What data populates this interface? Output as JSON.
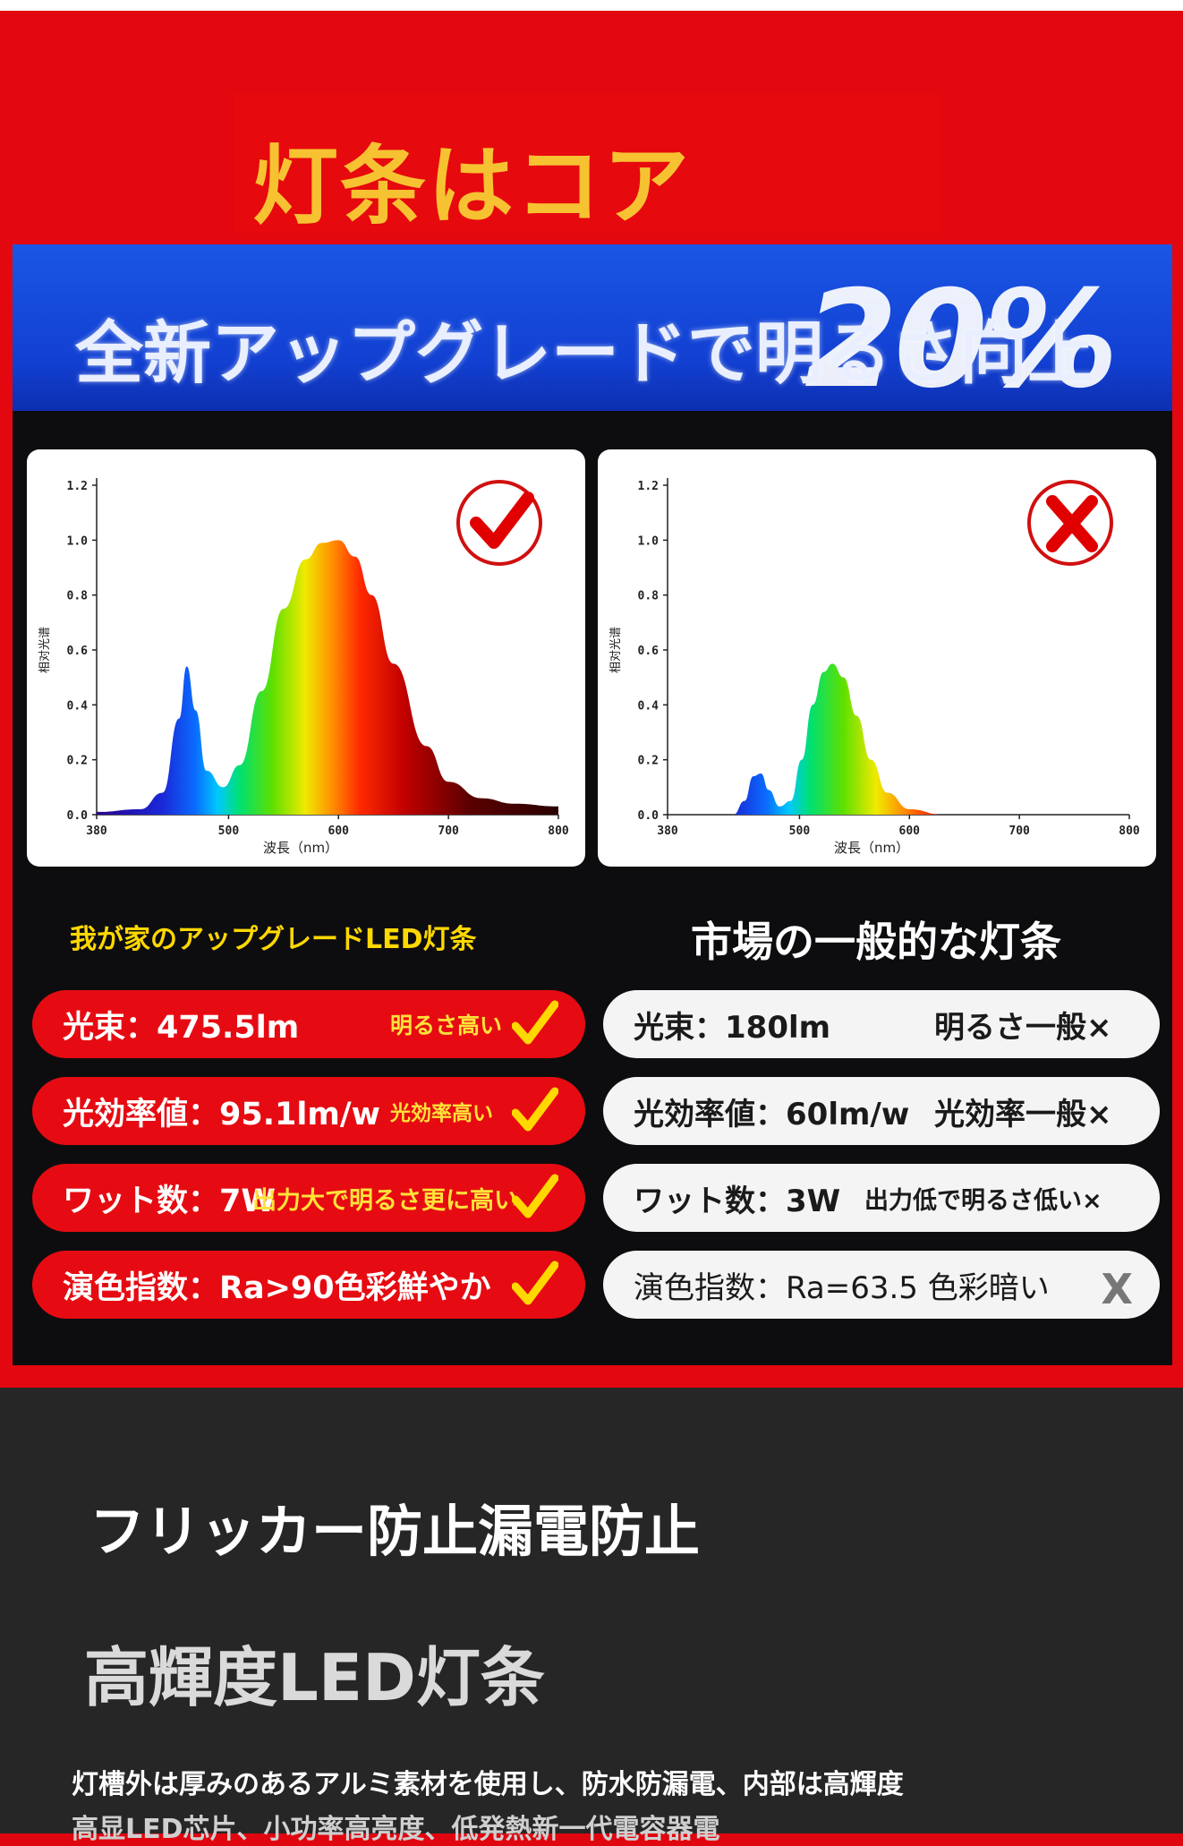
{
  "headline": "灯条はコア",
  "banner": {
    "text": "全新アップグレードで明るさ向上",
    "big": "20%"
  },
  "left_chart": {
    "y_ticks": [
      "1.2",
      "1.0",
      "0.8",
      "0.6",
      "0.4",
      "0.2",
      "0.0"
    ],
    "x_ticks": [
      "380",
      "500",
      "600",
      "700",
      "800"
    ],
    "xlabel": "波長（nm）",
    "ylabel": "相对光谱"
  },
  "right_chart": {
    "y_ticks": [
      "1.2",
      "1.0",
      "0.8",
      "0.6",
      "0.4",
      "0.2",
      "0.0"
    ],
    "x_ticks": [
      "380",
      "500",
      "600",
      "700",
      "800"
    ],
    "xlabel": "波長（nm）",
    "ylabel": "相对光谱"
  },
  "comparison": {
    "left_title": "我が家のアップグレードLED灯条",
    "right_title": "市場の一般的な灯条",
    "left_rows": [
      {
        "main": "光束：475.5lm",
        "note": "明るさ高い"
      },
      {
        "main": "光効率値：95.1lm/w",
        "note": "光効率高い"
      },
      {
        "main": "ワット数：7W",
        "note": "出力大で明るさ更に高い"
      },
      {
        "main": "演色指数：Ra>90色彩鮮やか",
        "note": ""
      }
    ],
    "right_rows": [
      {
        "main": "光束：180lm",
        "note": "明るさ一般×"
      },
      {
        "main": "光効率値：60lm/w",
        "note": "光効率一般×"
      },
      {
        "main": "ワット数：3W",
        "note": "出力低で明るさ低い×"
      },
      {
        "main": "演色指数：Ra=63.5 色彩暗い",
        "note": "X"
      }
    ]
  },
  "feature": {
    "title": "フリッカー防止漏電防止",
    "subtitle": "高輝度LED灯条",
    "desc": "灯槽外は厚みのあるアルミ素材を使用し、防水防漏電、内部は高輝度",
    "desc2": "高显LED芯片、小功率高亮度、低発熱新一代電容器電"
  },
  "chart_data": [
    {
      "type": "area",
      "xlabel": "波長（nm）",
      "ylabel": "相对光谱",
      "xlim": [
        380,
        800
      ],
      "ylim": [
        0,
        1.2
      ],
      "x": [
        380,
        420,
        440,
        455,
        462,
        470,
        480,
        495,
        510,
        530,
        550,
        570,
        585,
        600,
        615,
        630,
        650,
        680,
        700,
        730,
        760,
        800
      ],
      "y": [
        0.01,
        0.02,
        0.08,
        0.35,
        0.54,
        0.38,
        0.16,
        0.1,
        0.18,
        0.45,
        0.75,
        0.93,
        0.99,
        1.0,
        0.94,
        0.8,
        0.55,
        0.25,
        0.12,
        0.06,
        0.04,
        0.03
      ]
    },
    {
      "type": "area",
      "xlabel": "波長（nm）",
      "ylabel": "相对光谱",
      "xlim": [
        380,
        800
      ],
      "ylim": [
        0,
        1.2
      ],
      "x": [
        380,
        440,
        450,
        458,
        465,
        472,
        482,
        492,
        502,
        512,
        522,
        530,
        540,
        552,
        565,
        580,
        600,
        630,
        800
      ],
      "y": [
        0,
        0.0,
        0.05,
        0.14,
        0.15,
        0.09,
        0.03,
        0.05,
        0.2,
        0.4,
        0.52,
        0.55,
        0.5,
        0.36,
        0.2,
        0.08,
        0.02,
        0.0,
        0
      ]
    }
  ]
}
